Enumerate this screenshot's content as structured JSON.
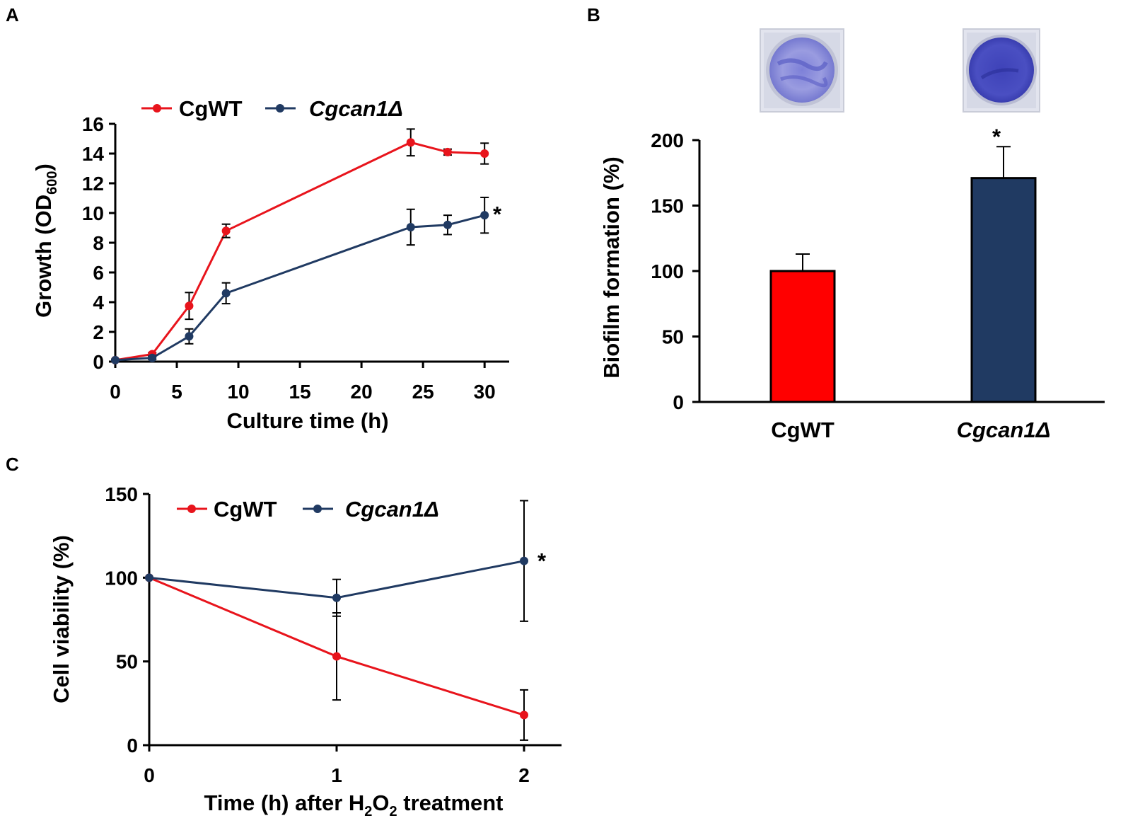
{
  "chart_data": [
    {
      "panel": "A",
      "type": "line",
      "xlabel": "Culture time (h)",
      "ylabel_main": "Growth (OD",
      "ylabel_sub": "600",
      "ylabel_close": ")",
      "xlim": [
        0,
        32
      ],
      "ylim": [
        0,
        16
      ],
      "xticks": [
        "0",
        "5",
        "10",
        "15",
        "20",
        "25",
        "30"
      ],
      "yticks": [
        "0",
        "2",
        "4",
        "6",
        "8",
        "10",
        "12",
        "14",
        "16"
      ],
      "series": [
        {
          "name": "CgWT",
          "italic": false,
          "color": "#e8141c",
          "x": [
            0,
            3,
            6,
            9,
            24,
            27,
            30
          ],
          "values": [
            0.1,
            0.5,
            3.75,
            8.8,
            14.75,
            14.1,
            14.0
          ],
          "errors": [
            0.05,
            0.1,
            0.9,
            0.45,
            0.9,
            0.2,
            0.7
          ]
        },
        {
          "name": "Cgcan1Δ",
          "italic": true,
          "color": "#203a62",
          "x": [
            0,
            3,
            6,
            9,
            24,
            27,
            30
          ],
          "values": [
            0.1,
            0.25,
            1.7,
            4.6,
            9.05,
            9.2,
            9.85
          ],
          "errors": [
            0.05,
            0.1,
            0.5,
            0.7,
            1.2,
            0.65,
            1.2
          ]
        }
      ],
      "annotation": "*"
    },
    {
      "panel": "B",
      "type": "bar",
      "ylabel": "Biofilm formation (%)",
      "ylim": [
        0,
        200
      ],
      "yticks": [
        "0",
        "50",
        "100",
        "150",
        "200"
      ],
      "categories": [
        "CgWT",
        "Cgcan1Δ"
      ],
      "category_italic": [
        false,
        true
      ],
      "values": [
        100,
        171
      ],
      "errors": [
        13,
        24
      ],
      "colors": [
        "#ff0000",
        "#203a62"
      ],
      "annotation": "*"
    },
    {
      "panel": "C",
      "type": "line",
      "xlabel_pre": "Time (h) after H",
      "xlabel_sub1": "2",
      "xlabel_mid": "O",
      "xlabel_sub2": "2",
      "xlabel_post": " treatment",
      "ylabel": "Cell viability (%)",
      "xlim": [
        0,
        2.2
      ],
      "ylim": [
        0,
        150
      ],
      "xticks": [
        "0",
        "1",
        "2"
      ],
      "yticks": [
        "0",
        "50",
        "100",
        "150"
      ],
      "series": [
        {
          "name": "CgWT",
          "italic": false,
          "color": "#e8141c",
          "x": [
            0,
            1,
            2
          ],
          "values": [
            100,
            53,
            18
          ],
          "errors": [
            0,
            26,
            15
          ]
        },
        {
          "name": "Cgcan1Δ",
          "italic": true,
          "color": "#203a62",
          "x": [
            0,
            1,
            2
          ],
          "values": [
            100,
            88,
            110
          ],
          "errors": [
            0,
            11,
            36
          ]
        }
      ],
      "annotation": "*"
    }
  ]
}
